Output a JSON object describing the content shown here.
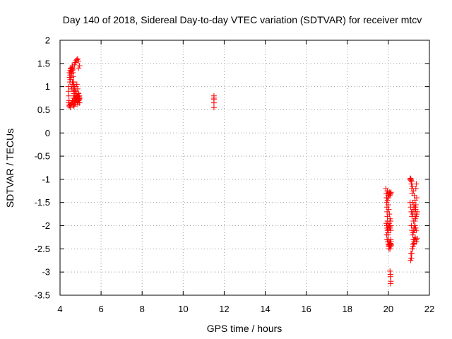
{
  "chart_data": {
    "type": "scatter",
    "title": "Day 140 of 2018, Sidereal Day-to-day VTEC variation (SDTVAR) for receiver mtcv",
    "xlabel": "GPS time / hours",
    "ylabel": "SDTVAR / TECUs",
    "xlim": [
      4,
      22
    ],
    "ylim": [
      -3.5,
      2
    ],
    "xticks": [
      "4",
      "6",
      "8",
      "10",
      "12",
      "14",
      "16",
      "18",
      "20",
      "22"
    ],
    "yticks": [
      "-3.5",
      "-3",
      "-2.5",
      "-2",
      "-1.5",
      "-1",
      "-0.5",
      "0",
      "0.5",
      "1",
      "1.5",
      "2"
    ],
    "grid": true,
    "marker": "plus",
    "color": "#ff0000",
    "series": [
      {
        "x": [
          4.4,
          4.42,
          4.43,
          4.44,
          4.45,
          4.46,
          4.47,
          4.48,
          4.49,
          4.5,
          4.5,
          4.51,
          4.52,
          4.53,
          4.54,
          4.55,
          4.56,
          4.57,
          4.58,
          4.59,
          4.6,
          4.61,
          4.62,
          4.63,
          4.64,
          4.65,
          4.66,
          4.67,
          4.68,
          4.7,
          4.72,
          4.74,
          4.76,
          4.78,
          4.8,
          4.82,
          4.84,
          4.86,
          4.88,
          4.9,
          4.92,
          4.94,
          4.96,
          4.42,
          4.45,
          4.48,
          4.52,
          4.56,
          4.6,
          4.64,
          4.68,
          4.72,
          4.76,
          4.8,
          4.84,
          4.88,
          4.92,
          4.55,
          4.58,
          4.62,
          4.66,
          4.7,
          4.74,
          4.78,
          4.82,
          4.86,
          4.9,
          4.94,
          4.7,
          4.74,
          4.78,
          4.82,
          4.86,
          4.9,
          4.6,
          4.65,
          4.7,
          4.75,
          4.8,
          4.85,
          4.9,
          4.95,
          4.5,
          4.55,
          4.6,
          4.65,
          4.7,
          4.75,
          4.8,
          4.85,
          4.9,
          4.95
        ],
        "y": [
          1.0,
          0.9,
          0.8,
          0.7,
          0.6,
          1.3,
          1.2,
          1.1,
          1.25,
          1.35,
          0.55,
          0.62,
          1.4,
          1.38,
          1.32,
          1.28,
          1.3,
          1.35,
          1.4,
          1.38,
          1.42,
          1.45,
          1.36,
          1.3,
          1.22,
          1.1,
          1.0,
          0.9,
          0.85,
          0.8,
          0.75,
          0.7,
          0.65,
          0.72,
          0.78,
          0.7,
          0.68,
          0.62,
          0.66,
          0.7,
          0.74,
          0.8,
          0.75,
          0.65,
          0.58,
          0.6,
          0.62,
          0.64,
          0.66,
          0.6,
          0.58,
          0.62,
          0.68,
          0.74,
          0.8,
          0.86,
          0.78,
          1.0,
          0.95,
          1.05,
          1.1,
          1.0,
          0.9,
          1.0,
          1.05,
          0.95,
          0.85,
          0.72,
          1.48,
          1.52,
          1.56,
          1.58,
          1.6,
          1.55,
          0.7,
          0.75,
          0.68,
          0.72,
          0.76,
          0.8,
          0.7,
          0.65,
          1.15,
          1.2,
          1.1,
          1.0,
          0.92,
          0.85,
          0.82,
          0.78,
          1.4,
          1.45
        ]
      },
      {
        "x": [
          11.5,
          11.5,
          11.5,
          11.5,
          11.5
        ],
        "y": [
          0.8,
          0.75,
          0.72,
          0.65,
          0.55
        ]
      },
      {
        "x": [
          19.88,
          19.9,
          19.91,
          19.92,
          19.93,
          19.94,
          19.95,
          19.96,
          19.97,
          19.98,
          19.99,
          20.0,
          20.01,
          20.02,
          20.03,
          20.04,
          20.05,
          20.06,
          20.07,
          20.08,
          20.09,
          20.1,
          20.11,
          20.12,
          20.13,
          20.14,
          19.9,
          19.92,
          19.94,
          19.96,
          19.98,
          20.0,
          20.02,
          20.04,
          20.06,
          20.08,
          20.1,
          20.12,
          19.95,
          19.97,
          19.99,
          20.01,
          20.03,
          20.05,
          20.07,
          20.09,
          20.11,
          20.13,
          19.93,
          19.96,
          19.99,
          20.02,
          20.05,
          20.08,
          20.11,
          19.92,
          19.94,
          19.97,
          20.0,
          20.03,
          20.06,
          20.09,
          20.12,
          20.08,
          20.1,
          20.12,
          20.1,
          20.11
        ],
        "y": [
          -1.2,
          -1.3,
          -1.4,
          -1.5,
          -1.6,
          -1.7,
          -1.8,
          -1.9,
          -2.0,
          -2.1,
          -2.2,
          -2.3,
          -2.4,
          -2.45,
          -2.5,
          -2.42,
          -2.35,
          -2.4,
          -2.45,
          -2.5,
          -2.42,
          -2.38,
          -2.45,
          -2.4,
          -2.35,
          -2.42,
          -1.95,
          -2.0,
          -2.05,
          -2.1,
          -2.15,
          -2.08,
          -2.0,
          -1.95,
          -2.02,
          -2.05,
          -2.0,
          -2.1,
          -1.25,
          -1.3,
          -1.35,
          -1.4,
          -1.32,
          -1.28,
          -1.35,
          -1.3,
          -1.32,
          -1.28,
          -1.4,
          -1.45,
          -1.55,
          -1.65,
          -1.75,
          -1.85,
          -1.9,
          -2.2,
          -2.3,
          -2.35,
          -2.4,
          -2.45,
          -2.4,
          -2.35,
          -2.3,
          -2.98,
          -3.05,
          -3.2,
          -3.1,
          -3.25
        ]
      },
      {
        "x": [
          21.05,
          21.08,
          21.1,
          21.12,
          21.14,
          21.16,
          21.18,
          21.2,
          21.22,
          21.24,
          21.26,
          21.28,
          21.3,
          21.32,
          21.34,
          21.36,
          21.38,
          21.4,
          21.1,
          21.13,
          21.16,
          21.19,
          21.22,
          21.25,
          21.28,
          21.31,
          21.34,
          21.37,
          21.4,
          21.12,
          21.15,
          21.18,
          21.21,
          21.24,
          21.27,
          21.3,
          21.33,
          21.36,
          21.06,
          21.09,
          21.12,
          21.15,
          21.18,
          21.21,
          21.24,
          21.27,
          21.3,
          21.33,
          21.08,
          21.11,
          21.14,
          21.17,
          21.2,
          21.23,
          21.26,
          21.29,
          21.32,
          21.35,
          21.38,
          21.1,
          21.14,
          21.18,
          21.22,
          21.26,
          21.3,
          21.34
        ],
        "y": [
          -1.0,
          -0.98,
          -1.02,
          -1.1,
          -1.2,
          -1.3,
          -1.5,
          -1.7,
          -1.9,
          -2.1,
          -2.3,
          -2.0,
          -1.8,
          -1.6,
          -1.2,
          -1.1,
          -1.4,
          -1.7,
          -2.6,
          -2.7,
          -2.5,
          -2.4,
          -2.3,
          -2.35,
          -2.3,
          -2.25,
          -2.3,
          -2.35,
          -2.28,
          -2.0,
          -2.1,
          -2.2,
          -2.15,
          -2.05,
          -2.1,
          -2.0,
          -2.05,
          -2.1,
          -1.5,
          -1.6,
          -1.7,
          -1.8,
          -1.75,
          -1.65,
          -1.55,
          -1.6,
          -1.7,
          -1.65,
          -2.75,
          -2.7,
          -2.6,
          -2.5,
          -2.45,
          -2.4,
          -2.38,
          -1.9,
          -1.85,
          -1.8,
          -1.75,
          -1.0,
          -1.05,
          -1.15,
          -1.25,
          -1.35,
          -1.45,
          -1.55
        ]
      }
    ]
  }
}
